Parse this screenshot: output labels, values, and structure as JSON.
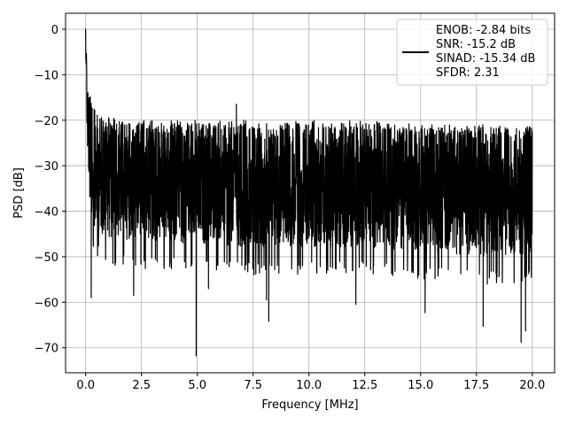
{
  "chart_data": {
    "type": "line",
    "title": "",
    "xlabel": "Frequency [MHz]",
    "ylabel": "PSD [dB]",
    "xlim": [
      -0.9,
      21.0
    ],
    "ylim": [
      -75.5,
      3.5
    ],
    "xticks": [
      0.0,
      2.5,
      5.0,
      7.5,
      10.0,
      12.5,
      15.0,
      17.5,
      20.0
    ],
    "xtick_labels": [
      "0.0",
      "2.5",
      "5.0",
      "7.5",
      "10.0",
      "12.5",
      "15.0",
      "17.5",
      "20.0"
    ],
    "yticks": [
      0,
      -10,
      -20,
      -30,
      -40,
      -50,
      -60,
      -70
    ],
    "ytick_labels": [
      "0",
      "−10",
      "−20",
      "−30",
      "−40",
      "−50",
      "−60",
      "−70"
    ],
    "grid": true,
    "legend": {
      "placement": "upper right",
      "lines": [
        "ENOB: -2.84 bits",
        "SNR: -15.2 dB",
        "SINAD: -15.34 dB",
        "SFDR: 2.31"
      ]
    },
    "series": [
      {
        "color": "#000000",
        "description": "Dense noise-like PSD spectrum from 0 to 20 MHz",
        "envelope": {
          "x": [
            0.0,
            0.05,
            0.1,
            0.2,
            0.3,
            0.5,
            1.0,
            2.0,
            3.0,
            5.0,
            7.5,
            10.0,
            12.5,
            15.0,
            17.5,
            20.0
          ],
          "upper": [
            0.0,
            -5,
            -10,
            -14,
            -16,
            -18,
            -19,
            -20,
            -20,
            -20,
            -20,
            -20,
            -20,
            -21,
            -21,
            -21
          ],
          "lower": [
            -8,
            -25,
            -35,
            -45,
            -48,
            -50,
            -52,
            -52,
            -53,
            -53,
            -54,
            -54,
            -54,
            -55,
            -56,
            -56
          ]
        },
        "notable_points": [
          {
            "x": 0.0,
            "y": 0.0
          },
          {
            "x": 0.25,
            "y": -59
          },
          {
            "x": 2.15,
            "y": -58.5
          },
          {
            "x": 4.95,
            "y": -71.8
          },
          {
            "x": 5.5,
            "y": -57
          },
          {
            "x": 8.1,
            "y": -59.5
          },
          {
            "x": 8.2,
            "y": -64.2
          },
          {
            "x": 6.75,
            "y": -16.5
          },
          {
            "x": 12.1,
            "y": -60.5
          },
          {
            "x": 15.2,
            "y": -62.3
          },
          {
            "x": 17.8,
            "y": -65.3
          },
          {
            "x": 19.5,
            "y": -68.8
          },
          {
            "x": 19.7,
            "y": -66.3
          }
        ]
      }
    ]
  }
}
